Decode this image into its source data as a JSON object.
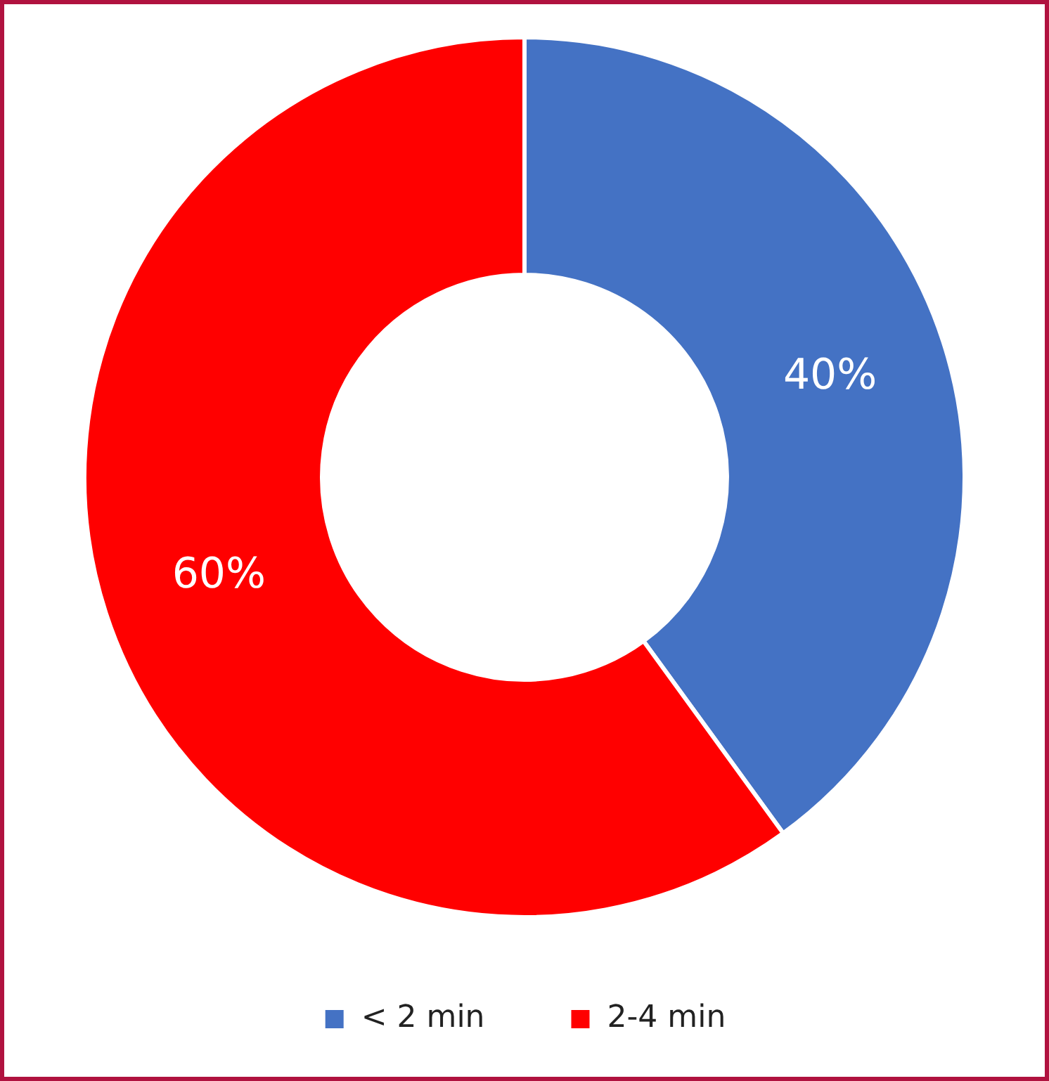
{
  "chart_data": {
    "type": "donut",
    "categories": [
      "< 2 min",
      "2-4 min"
    ],
    "values": [
      40,
      60
    ],
    "colors": [
      "#4472c4",
      "#ff0000"
    ],
    "value_labels": [
      "40%",
      "60%"
    ],
    "legend": "bottom"
  }
}
